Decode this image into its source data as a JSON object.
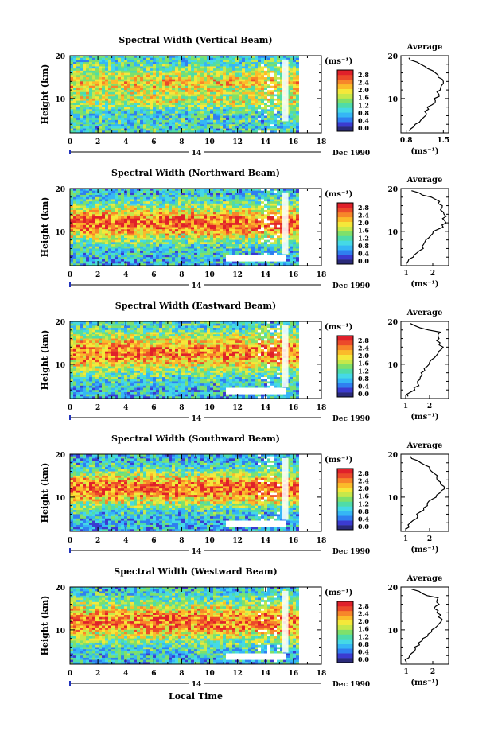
{
  "figure": {
    "xlabel": "Local Time",
    "date_label": "Dec 1990",
    "day_label": "14"
  },
  "colorbar": {
    "unit": "(ms⁻¹)",
    "ticks": [
      "0.0",
      "0.4",
      "0.8",
      "1.2",
      "1.6",
      "2.0",
      "2.4",
      "2.8"
    ],
    "colors": [
      "#2a2a7a",
      "#3b3bd0",
      "#2f7ff0",
      "#35b6f5",
      "#45d9e6",
      "#4fdca8",
      "#7fe06a",
      "#c6e84a",
      "#f5e83a",
      "#fbbb2a",
      "#f7862a",
      "#ec4a2a",
      "#e0202a"
    ]
  },
  "chart_data": [
    {
      "type": "heatmap",
      "title": "Spectral Width (Vertical Beam)",
      "ylabel": "Height (km)",
      "x_ticks": [
        "0",
        "2",
        "4",
        "6",
        "8",
        "10",
        "12",
        "14",
        "16",
        "18"
      ],
      "y_ticks": [
        "10",
        "20"
      ],
      "xlim": [
        0,
        18
      ],
      "ylim": [
        2,
        20
      ],
      "avg_profile": {
        "title": "Average",
        "xlabel": "(ms⁻¹)",
        "x_ticks": [
          "0.8",
          "1.5"
        ],
        "y_ticks": [
          "10",
          "20"
        ],
        "xlim": [
          0.7,
          1.6
        ],
        "height": [
          2.5,
          3.5,
          4.5,
          5.5,
          6.5,
          7.5,
          8.5,
          9.5,
          10.5,
          11.5,
          12.5,
          13.5,
          14.5,
          15.5,
          16.5,
          17.5,
          18.5,
          19.5
        ],
        "values": [
          0.85,
          0.95,
          1.05,
          1.12,
          1.18,
          1.22,
          1.28,
          1.35,
          1.42,
          1.38,
          1.45,
          1.5,
          1.48,
          1.4,
          1.3,
          1.15,
          1.0,
          0.85
        ]
      }
    },
    {
      "type": "heatmap",
      "title": "Spectral Width (Northward Beam)",
      "ylabel": "Height (km)",
      "x_ticks": [
        "0",
        "2",
        "4",
        "6",
        "8",
        "10",
        "12",
        "14",
        "16",
        "18"
      ],
      "y_ticks": [
        "10",
        "20"
      ],
      "xlim": [
        0,
        18
      ],
      "ylim": [
        2,
        20
      ],
      "avg_profile": {
        "title": "Average",
        "xlabel": "(ms⁻¹)",
        "x_ticks": [
          "1",
          "2"
        ],
        "y_ticks": [
          "10",
          "20"
        ],
        "xlim": [
          0.8,
          2.6
        ],
        "height": [
          2.5,
          3.5,
          4.5,
          5.5,
          6.5,
          7.5,
          8.5,
          9.5,
          10.5,
          11.5,
          12.5,
          13.5,
          14.5,
          15.5,
          16.5,
          17.5,
          18.5,
          19.5
        ],
        "values": [
          1.0,
          1.1,
          1.3,
          1.5,
          1.6,
          1.7,
          1.85,
          2.0,
          2.2,
          2.35,
          2.45,
          2.5,
          2.4,
          2.35,
          2.2,
          2.1,
          1.6,
          1.2
        ]
      }
    },
    {
      "type": "heatmap",
      "title": "Spectral Width (Eastward Beam)",
      "ylabel": "Height (km)",
      "x_ticks": [
        "0",
        "2",
        "4",
        "6",
        "8",
        "10",
        "12",
        "14",
        "16",
        "18"
      ],
      "y_ticks": [
        "10",
        "20"
      ],
      "xlim": [
        0,
        18
      ],
      "ylim": [
        2,
        20
      ],
      "avg_profile": {
        "title": "Average",
        "xlabel": "(ms⁻¹)",
        "x_ticks": [
          "1",
          "2"
        ],
        "y_ticks": [
          "10",
          "20"
        ],
        "xlim": [
          0.8,
          2.8
        ],
        "height": [
          2.5,
          3.5,
          4.5,
          5.5,
          6.5,
          7.5,
          8.5,
          9.5,
          10.5,
          11.5,
          12.5,
          13.5,
          14.5,
          15.5,
          16.5,
          17.5,
          18.5,
          19.5
        ],
        "values": [
          1.1,
          1.2,
          1.35,
          1.5,
          1.6,
          1.7,
          1.8,
          1.9,
          2.0,
          2.2,
          2.35,
          2.5,
          2.4,
          2.3,
          2.35,
          2.45,
          1.6,
          1.2
        ]
      }
    },
    {
      "type": "heatmap",
      "title": "Spectral Width (Southward Beam)",
      "ylabel": "Height (km)",
      "x_ticks": [
        "0",
        "2",
        "4",
        "6",
        "8",
        "10",
        "12",
        "14",
        "16",
        "18"
      ],
      "y_ticks": [
        "10",
        "20"
      ],
      "xlim": [
        0,
        18
      ],
      "ylim": [
        2,
        20
      ],
      "avg_profile": {
        "title": "Average",
        "xlabel": "(ms⁻¹)",
        "x_ticks": [
          "1",
          "2"
        ],
        "y_ticks": [
          "10",
          "20"
        ],
        "xlim": [
          0.8,
          2.8
        ],
        "height": [
          2.5,
          3.5,
          4.5,
          5.5,
          6.5,
          7.5,
          8.5,
          9.5,
          10.5,
          11.5,
          12.5,
          13.5,
          14.5,
          15.5,
          16.5,
          17.5,
          18.5,
          19.5
        ],
        "values": [
          1.0,
          1.1,
          1.3,
          1.5,
          1.6,
          1.75,
          1.9,
          2.1,
          2.3,
          2.5,
          2.6,
          2.45,
          2.3,
          2.2,
          2.0,
          1.8,
          1.5,
          1.2
        ]
      }
    },
    {
      "type": "heatmap",
      "title": "Spectral Width (Westward Beam)",
      "ylabel": "Height (km)",
      "x_ticks": [
        "0",
        "2",
        "4",
        "6",
        "8",
        "10",
        "12",
        "14",
        "16",
        "18"
      ],
      "y_ticks": [
        "10",
        "20"
      ],
      "xlim": [
        0,
        18
      ],
      "ylim": [
        2,
        20
      ],
      "avg_profile": {
        "title": "Average",
        "xlabel": "(ms⁻¹)",
        "x_ticks": [
          "1",
          "2"
        ],
        "y_ticks": [
          "10",
          "20"
        ],
        "xlim": [
          0.8,
          2.6
        ],
        "height": [
          2.5,
          3.5,
          4.5,
          5.5,
          6.5,
          7.5,
          8.5,
          9.5,
          10.5,
          11.5,
          12.5,
          13.5,
          14.5,
          15.5,
          16.5,
          17.5,
          18.5,
          19.5
        ],
        "values": [
          1.0,
          1.1,
          1.2,
          1.35,
          1.5,
          1.6,
          1.8,
          1.95,
          2.1,
          2.25,
          2.35,
          2.3,
          2.2,
          2.1,
          2.15,
          2.2,
          1.6,
          1.2
        ]
      }
    }
  ]
}
